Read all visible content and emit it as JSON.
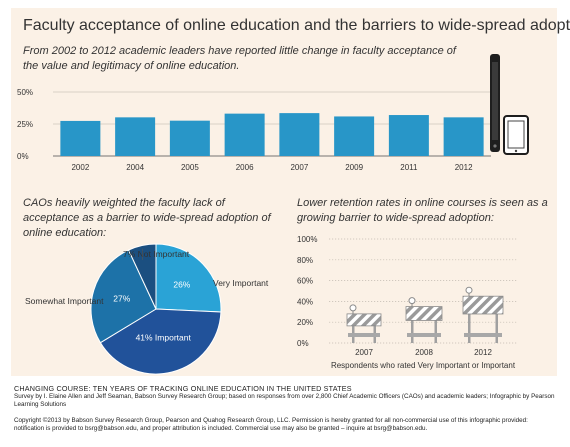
{
  "title": "Faculty acceptance of online education and the barriers to wide-spread adoption",
  "subtitle": "From 2002 to 2012 academic leaders have reported little change in faculty acceptance of the value and legitimacy of online education.",
  "pie_caption": "CAOs heavily weighted the faculty lack of acceptance as a barrier to wide-spread adoption of online education:",
  "barrier_caption": "Lower retention rates in online courses is seen as a growing barrier to wide-spread adoption:",
  "footer": {
    "title": "CHANGING COURSE: TEN YEARS OF TRACKING ONLINE EDUCATION IN THE UNITED STATES",
    "survey": "Survey by I. Elaine Allen and Jeff Seaman, Babson Survey Research Group; based on responses from over 2,800 Chief Academic Officers (CAOs) and academic leaders; Infographic by Pearson Learning Solutions",
    "copyright": "Copyright ©2013 by Babson Survey Research Group, Pearson and Quahog Research Group, LLC. Permission is hereby granted for all non-commercial use of this infographic provided: notification is provided to bsrg@babson.edu, and proper attribution is included. Commercial use may also be granted – inquire at bsrg@babson.edu."
  },
  "colors": {
    "bar_blue": "#2896c8",
    "pie_light": "#2aa3d6",
    "pie_mid": "#1d72a8",
    "pie_dark": "#21529a",
    "pie_darkest": "#1b4f80",
    "barrier_stripe": "#9a9a9a"
  },
  "chart_data": [
    {
      "type": "bar",
      "categories": [
        "2002",
        "2004",
        "2005",
        "2006",
        "2007",
        "2009",
        "2011",
        "2012"
      ],
      "values": [
        27.4,
        30.2,
        27.6,
        33.1,
        33.5,
        30.9,
        32.0,
        30.2
      ],
      "y_ticks": [
        "50%",
        "25%",
        "0%"
      ],
      "ylim": [
        0,
        50
      ],
      "unit": "%"
    },
    {
      "type": "pie",
      "slices": [
        {
          "label": "Very Important",
          "value": 26,
          "value_label": "26%",
          "color": "#2aa3d6"
        },
        {
          "label": "Important",
          "value": 41,
          "value_label": "41% Important",
          "color": "#21529a"
        },
        {
          "label": "Somewhat Important",
          "value": 27,
          "value_label": "27%",
          "color": "#1d72a8"
        },
        {
          "label": "Not Important",
          "value": 7,
          "value_label": "7% Not Important",
          "color": "#1b4f80"
        }
      ],
      "outside_labels": {
        "very": "Very Important",
        "somewhat": "Somewhat Important",
        "not": "7% Not Important"
      }
    },
    {
      "type": "bar",
      "categories": [
        "2007",
        "2008",
        "2012"
      ],
      "values": [
        28,
        35,
        45
      ],
      "y_ticks": [
        "100%",
        "80%",
        "60%",
        "40%",
        "20%",
        "0%"
      ],
      "ylim": [
        0,
        100
      ],
      "xlabel": "Respondents who rated Very Important or Important",
      "unit": "%"
    }
  ]
}
